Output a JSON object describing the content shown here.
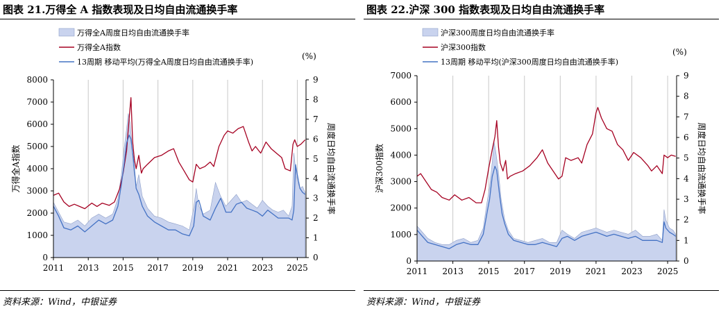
{
  "chart_data": [
    {
      "type": "line",
      "title": "图表 21.万得全 A 指数表现及日均自由流通换手率",
      "source": "资料来源：Wind，中银证券",
      "unit_label": "(%)",
      "ylabel_left": "万得全A指数",
      "ylabel_right": "周度日均自由流通换手率",
      "ylim_left": [
        0,
        8000
      ],
      "ylim_right": [
        0,
        9
      ],
      "yticks_left": [
        "0",
        "1000",
        "2000",
        "3000",
        "4000",
        "5000",
        "6000",
        "7000",
        "8000"
      ],
      "yticks_right": [
        "0",
        "1",
        "2",
        "3",
        "4",
        "5",
        "6",
        "7",
        "8",
        "9"
      ],
      "xticks": [
        "2011",
        "2013",
        "2015",
        "2017",
        "2019",
        "2021",
        "2023",
        "2025"
      ],
      "xlim": [
        2011,
        2025.5
      ],
      "grid": "vertical",
      "legend_position": "top-left",
      "series": [
        {
          "name": "万得全A周度日均自由流通换手率",
          "kind": "area",
          "axis": "right",
          "color": "#c9d3ee",
          "x": [
            2011,
            2011.3,
            2011.6,
            2012,
            2012.4,
            2012.8,
            2013.2,
            2013.6,
            2014,
            2014.4,
            2014.7,
            2014.9,
            2015.05,
            2015.2,
            2015.3,
            2015.4,
            2015.5,
            2015.6,
            2015.75,
            2015.9,
            2016.1,
            2016.4,
            2016.8,
            2017.2,
            2017.6,
            2018,
            2018.4,
            2018.8,
            2019.05,
            2019.2,
            2019.35,
            2019.6,
            2020,
            2020.3,
            2020.6,
            2020.9,
            2021.2,
            2021.5,
            2021.8,
            2022.1,
            2022.4,
            2022.7,
            2023,
            2023.3,
            2023.6,
            2023.9,
            2024.2,
            2024.5,
            2024.7,
            2024.8,
            2024.9,
            2025,
            2025.15,
            2025.3,
            2025.45
          ],
          "values": [
            2.8,
            2.3,
            1.8,
            1.7,
            1.9,
            1.6,
            2.0,
            2.2,
            2.0,
            2.2,
            3.0,
            4.2,
            5.5,
            6.5,
            7.3,
            6.8,
            5.8,
            4.5,
            3.6,
            4.2,
            3.1,
            2.5,
            2.1,
            2.0,
            1.8,
            1.7,
            1.6,
            1.4,
            2.5,
            3.5,
            2.6,
            2.2,
            2.4,
            3.8,
            3.1,
            2.6,
            2.9,
            3.2,
            2.8,
            2.9,
            2.7,
            2.5,
            2.9,
            2.6,
            2.4,
            2.3,
            2.4,
            2.1,
            2.6,
            5.3,
            4.5,
            3.9,
            3.5,
            3.6,
            3.3
          ]
        },
        {
          "name": "万得全A指数",
          "kind": "line",
          "axis": "left",
          "color": "#a50021",
          "x": [
            2011,
            2011.3,
            2011.6,
            2011.9,
            2012.2,
            2012.5,
            2012.8,
            2013.2,
            2013.5,
            2013.8,
            2014.2,
            2014.5,
            2014.8,
            2015,
            2015.2,
            2015.3,
            2015.45,
            2015.55,
            2015.65,
            2015.75,
            2015.9,
            2016.05,
            2016.15,
            2016.4,
            2016.8,
            2017.2,
            2017.6,
            2017.9,
            2018.2,
            2018.5,
            2018.8,
            2019.0,
            2019.2,
            2019.4,
            2019.7,
            2020,
            2020.2,
            2020.5,
            2020.8,
            2021,
            2021.3,
            2021.6,
            2021.9,
            2022.2,
            2022.4,
            2022.6,
            2022.9,
            2023.2,
            2023.5,
            2023.8,
            2024.1,
            2024.3,
            2024.6,
            2024.75,
            2024.85,
            2025,
            2025.2,
            2025.45
          ],
          "values": [
            2800,
            2900,
            2500,
            2300,
            2400,
            2300,
            2200,
            2450,
            2300,
            2450,
            2350,
            2500,
            3100,
            3800,
            4800,
            5800,
            7200,
            5200,
            4400,
            4000,
            4600,
            3800,
            4000,
            4200,
            4500,
            4600,
            4800,
            4900,
            4300,
            3900,
            3500,
            3400,
            4200,
            4000,
            4100,
            4300,
            4100,
            5000,
            5500,
            5700,
            5600,
            5800,
            5900,
            5200,
            4800,
            5000,
            4700,
            5200,
            4900,
            4700,
            4500,
            4000,
            3900,
            5100,
            5300,
            5000,
            5100,
            5300
          ]
        },
        {
          "name": "13周期 移动平均(万得全A周度日均自由流通换手率)",
          "kind": "line",
          "axis": "right",
          "color": "#4472c4",
          "x": [
            2011,
            2011.3,
            2011.6,
            2012,
            2012.4,
            2012.8,
            2013.2,
            2013.6,
            2014,
            2014.4,
            2014.7,
            2014.9,
            2015.05,
            2015.2,
            2015.35,
            2015.45,
            2015.6,
            2015.75,
            2015.9,
            2016.1,
            2016.4,
            2016.8,
            2017.2,
            2017.6,
            2018,
            2018.4,
            2018.8,
            2019.05,
            2019.2,
            2019.35,
            2019.6,
            2020,
            2020.3,
            2020.6,
            2020.9,
            2021.2,
            2021.5,
            2021.8,
            2022.1,
            2022.4,
            2022.7,
            2023,
            2023.3,
            2023.6,
            2023.9,
            2024.2,
            2024.5,
            2024.7,
            2024.8,
            2024.9,
            2025,
            2025.15,
            2025.3,
            2025.45
          ],
          "values": [
            2.6,
            2.1,
            1.5,
            1.4,
            1.6,
            1.3,
            1.6,
            1.9,
            1.7,
            1.9,
            2.6,
            3.7,
            4.7,
            5.8,
            6.2,
            6.0,
            4.9,
            3.5,
            3.2,
            2.6,
            2.1,
            1.8,
            1.6,
            1.4,
            1.4,
            1.2,
            1.1,
            1.6,
            2.8,
            2.9,
            2.1,
            1.9,
            2.5,
            3.0,
            2.3,
            2.3,
            2.7,
            2.8,
            2.5,
            2.4,
            2.3,
            2.1,
            2.4,
            2.2,
            2.0,
            2.0,
            2.0,
            1.9,
            2.4,
            4.7,
            4.2,
            3.5,
            3.3,
            3.2
          ]
        }
      ]
    },
    {
      "type": "line",
      "title": "图表 22.沪深 300 指数表现及日均自由流通换手率",
      "source": "资料来源：Wind，中银证券",
      "unit_label": "(%)",
      "ylabel_left": "沪深300指数",
      "ylabel_right": "周度日均自由流通换手率",
      "ylim_left": [
        0,
        7000
      ],
      "ylim_right": [
        0,
        9
      ],
      "yticks_left": [
        "0",
        "1000",
        "2000",
        "3000",
        "4000",
        "5000",
        "6000",
        "7000"
      ],
      "yticks_right": [
        "0",
        "1",
        "2",
        "3",
        "4",
        "5",
        "6",
        "7",
        "8",
        "9"
      ],
      "xticks": [
        "2011",
        "2013",
        "2015",
        "2017",
        "2019",
        "2021",
        "2023",
        "2025"
      ],
      "xlim": [
        2011,
        2025.5
      ],
      "grid": "vertical",
      "legend_position": "top-left",
      "series": [
        {
          "name": "沪深300周度日均自由流通换手率",
          "kind": "area",
          "axis": "right",
          "color": "#c9d3ee",
          "x": [
            2011,
            2011.3,
            2011.6,
            2012,
            2012.4,
            2012.8,
            2013.2,
            2013.6,
            2014,
            2014.4,
            2014.7,
            2014.9,
            2015.05,
            2015.2,
            2015.3,
            2015.4,
            2015.55,
            2015.7,
            2015.9,
            2016.1,
            2016.4,
            2016.8,
            2017.2,
            2017.6,
            2018,
            2018.4,
            2018.8,
            2019.1,
            2019.4,
            2019.8,
            2020.2,
            2020.6,
            2021,
            2021.3,
            2021.6,
            2022,
            2022.4,
            2022.8,
            2023.2,
            2023.6,
            2024,
            2024.4,
            2024.7,
            2024.8,
            2024.9,
            2025.1,
            2025.3,
            2025.45
          ],
          "values": [
            1.7,
            1.4,
            1.1,
            0.9,
            0.8,
            0.8,
            1.0,
            1.1,
            0.9,
            1.0,
            1.6,
            2.8,
            3.6,
            4.8,
            5.8,
            5.3,
            4.3,
            3.0,
            2.0,
            1.5,
            1.1,
            1.0,
            0.9,
            1.0,
            1.1,
            0.9,
            0.9,
            1.5,
            1.3,
            1.1,
            1.4,
            1.5,
            1.6,
            1.5,
            1.4,
            1.5,
            1.4,
            1.3,
            1.5,
            1.2,
            1.2,
            1.3,
            1.0,
            2.5,
            2.0,
            1.6,
            1.5,
            1.3
          ]
        },
        {
          "name": "沪深300指数",
          "kind": "line",
          "axis": "left",
          "color": "#a50021",
          "x": [
            2011,
            2011.2,
            2011.5,
            2011.8,
            2012.1,
            2012.4,
            2012.8,
            2013.1,
            2013.5,
            2013.9,
            2014.3,
            2014.6,
            2014.8,
            2015,
            2015.2,
            2015.35,
            2015.45,
            2015.55,
            2015.65,
            2015.8,
            2015.95,
            2016.05,
            2016.2,
            2016.5,
            2016.9,
            2017.3,
            2017.7,
            2018.0,
            2018.3,
            2018.6,
            2018.9,
            2019.1,
            2019.3,
            2019.6,
            2020,
            2020.2,
            2020.5,
            2020.8,
            2021.0,
            2021.1,
            2021.3,
            2021.6,
            2021.9,
            2022.2,
            2022.5,
            2022.8,
            2023.1,
            2023.5,
            2023.9,
            2024.1,
            2024.4,
            2024.7,
            2024.8,
            2025,
            2025.2,
            2025.45
          ],
          "values": [
            3200,
            3300,
            3000,
            2700,
            2600,
            2400,
            2300,
            2500,
            2300,
            2400,
            2200,
            2200,
            2700,
            3500,
            4200,
            4700,
            5300,
            4300,
            3700,
            3400,
            3800,
            3100,
            3200,
            3300,
            3400,
            3600,
            3900,
            4200,
            3700,
            3400,
            3100,
            3200,
            3900,
            3800,
            3900,
            3700,
            4400,
            4800,
            5600,
            5800,
            5400,
            5000,
            4900,
            4400,
            4200,
            3800,
            4100,
            3900,
            3600,
            3400,
            3600,
            3300,
            4000,
            3900,
            4000,
            3950
          ]
        },
        {
          "name": "13周期 移动平均(沪深300周度日均自由流通换手率)",
          "kind": "line",
          "axis": "right",
          "color": "#4472c4",
          "x": [
            2011,
            2011.3,
            2011.6,
            2012,
            2012.4,
            2012.8,
            2013.2,
            2013.6,
            2014,
            2014.4,
            2014.7,
            2014.9,
            2015.05,
            2015.2,
            2015.35,
            2015.45,
            2015.6,
            2015.75,
            2015.9,
            2016.1,
            2016.4,
            2016.8,
            2017.2,
            2017.6,
            2018,
            2018.4,
            2018.8,
            2019.1,
            2019.4,
            2019.8,
            2020.2,
            2020.6,
            2021,
            2021.3,
            2021.6,
            2022,
            2022.4,
            2022.8,
            2023.2,
            2023.6,
            2024,
            2024.4,
            2024.7,
            2024.8,
            2024.9,
            2025.1,
            2025.3,
            2025.45
          ],
          "values": [
            1.5,
            1.2,
            0.9,
            0.8,
            0.7,
            0.6,
            0.8,
            0.9,
            0.8,
            0.8,
            1.3,
            2.3,
            3.0,
            4.1,
            4.6,
            4.4,
            3.3,
            2.3,
            1.8,
            1.3,
            1.0,
            0.9,
            0.8,
            0.8,
            0.9,
            0.8,
            0.7,
            1.1,
            1.2,
            1.0,
            1.2,
            1.3,
            1.4,
            1.3,
            1.2,
            1.3,
            1.2,
            1.1,
            1.2,
            1.0,
            1.0,
            1.0,
            0.9,
            1.9,
            1.6,
            1.4,
            1.3,
            1.2
          ]
        }
      ]
    }
  ]
}
